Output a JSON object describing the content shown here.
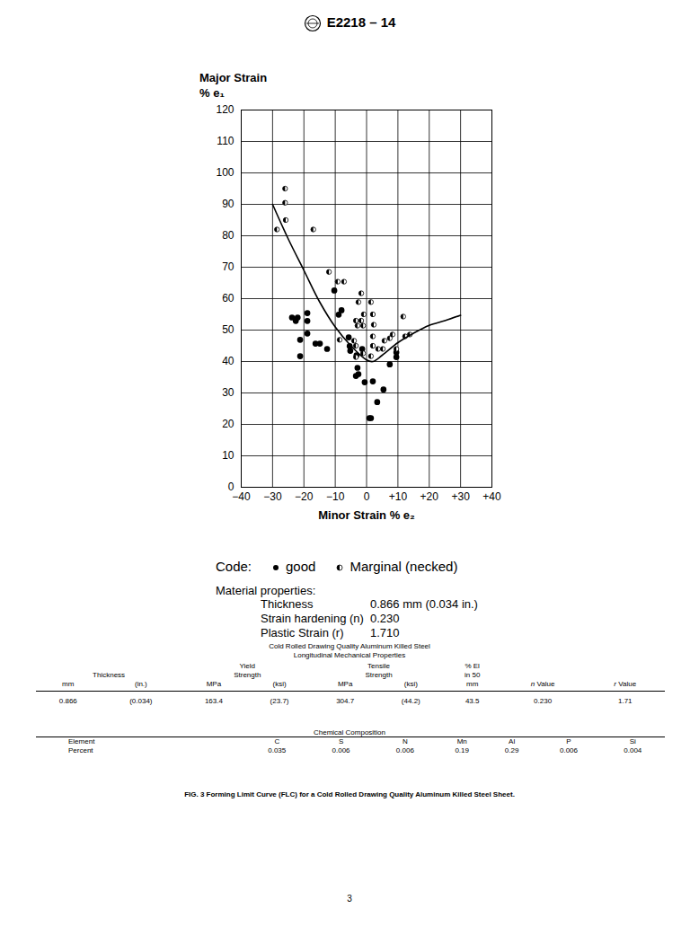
{
  "header": {
    "designation": "E2218 – 14"
  },
  "chart_data": {
    "type": "scatter",
    "xlabel": "Minor Strain % e₂",
    "ylabel": "Major Strain\n% e₁",
    "xlim": [
      -40,
      40
    ],
    "ylim": [
      0,
      120
    ],
    "xticks": [
      {
        "value": -40,
        "label": "−40"
      },
      {
        "value": -30,
        "label": "−30"
      },
      {
        "value": -20,
        "label": "−20"
      },
      {
        "value": -10,
        "label": "−10"
      },
      0,
      {
        "value": 10,
        "label": "+10"
      },
      {
        "value": 20,
        "label": "+20"
      },
      {
        "value": 30,
        "label": "+30"
      },
      {
        "value": 40,
        "label": "+40"
      }
    ],
    "yticks": [
      0,
      10,
      20,
      30,
      40,
      50,
      60,
      70,
      80,
      90,
      100,
      110,
      120
    ],
    "grid": true,
    "legend": "bottom",
    "series": [
      {
        "name": "good",
        "type": "scatter",
        "marker": "circle",
        "color": "#000000",
        "x": [
          -10.3,
          -8,
          -8.9,
          -18.9,
          -18.9,
          -23.8,
          -22,
          -22.6,
          -18.9,
          -21.2,
          -16.3,
          -14.9,
          -12.6,
          -21.2,
          -5.7,
          -5.4,
          -5.2,
          -1.4,
          -3.2,
          -2.9,
          -3.4,
          -2.6,
          -0.6,
          2,
          5.4,
          3.4,
          0.9,
          1.4,
          7.4,
          9.5,
          9.5
        ],
        "values": [
          62.6,
          56.3,
          54.9,
          55.4,
          52.9,
          54,
          54,
          52.9,
          48.9,
          46.9,
          45.7,
          45.7,
          44,
          41.7,
          47.7,
          44.9,
          43.4,
          44,
          42,
          38,
          35.4,
          36,
          33.4,
          33.7,
          31.1,
          27.1,
          22,
          22,
          39.1,
          41.4,
          42.9
        ]
      },
      {
        "name": "Marginal (necked)",
        "type": "scatter",
        "marker": "half-filled circle",
        "color": "#000000",
        "x": [
          -26,
          -26,
          -25.8,
          -28.6,
          -17,
          -12,
          -9.2,
          -7.2,
          -1.7,
          1.4,
          -2.6,
          2,
          -0.9,
          -3.4,
          -1.7,
          2.3,
          -2.9,
          -1.1,
          -8.6,
          -4,
          -3.4,
          2,
          2,
          3.7,
          5.2,
          5.7,
          7.4,
          8.3,
          11.7,
          12.3,
          13.8,
          9.5,
          1.4,
          -3.4,
          -1.1
        ],
        "values": [
          95,
          90.5,
          85,
          82,
          82,
          68.5,
          65.4,
          65.4,
          61.7,
          58.9,
          58.9,
          55,
          55,
          53,
          53,
          51.7,
          51.4,
          51.4,
          46.9,
          46.6,
          45,
          48,
          45,
          44,
          44,
          46.6,
          47.4,
          48.6,
          54.3,
          48,
          48.6,
          44,
          41.7,
          41.4,
          42.6
        ]
      },
      {
        "type": "line",
        "line_style": "solid",
        "color": "#000000",
        "x": [
          -30,
          -25,
          -20,
          -15,
          -10,
          -5,
          0,
          2,
          5,
          10,
          15,
          20,
          25,
          30
        ],
        "values": [
          90,
          79,
          69,
          59,
          51,
          45,
          40.5,
          40,
          42,
          46,
          49,
          51.5,
          53,
          54.7
        ]
      }
    ]
  },
  "legend_block": {
    "title": "Code:"
  },
  "material_properties": {
    "title": "Material properties:",
    "rows": [
      [
        "Thickness",
        "0.866 mm (0.034 in.)"
      ],
      [
        "Strain hardening (n)",
        "0.230"
      ],
      [
        "Plastic Strain (r)",
        "1.710"
      ]
    ]
  },
  "mechanical_table": {
    "title": "Cold Rolled Drawing Quality Aluminum Killed Steel",
    "subtitle": "Longitudinal Mechanical Properties",
    "groups": [
      {
        "label": "Thickness",
        "units": [
          "mm",
          "(in.)"
        ]
      },
      {
        "label": "Yield\nStrength",
        "units": [
          "MPa",
          "(ksi)"
        ]
      },
      {
        "label": "Tensile\nStrength",
        "units": [
          "MPa",
          "(ksi)"
        ]
      },
      {
        "label": "% El\nin 50\nmm",
        "units": []
      },
      {
        "label": "n Value",
        "italic": "n",
        "units": []
      },
      {
        "label": "r Value",
        "italic": "r",
        "units": []
      }
    ],
    "row": [
      "0.866",
      "(0.034)",
      "163.4",
      "(23.7)",
      "304.7",
      "(44.2)",
      "43.5",
      "0.230",
      "1.71"
    ]
  },
  "chemical_table": {
    "title": "Chemical Composition",
    "rows": [
      [
        "Element",
        "C",
        "S",
        "N",
        "Mn",
        "Al",
        "P",
        "Si"
      ],
      [
        "Percent",
        "0.035",
        "0.006",
        "0.006",
        "0.19",
        "0.29",
        "0.006",
        "0.004"
      ]
    ]
  },
  "caption": "FIG. 3 Forming Limit Curve (FLC) for a Cold Rolled Drawing Quality Aluminum Killed Steel Sheet.",
  "page_number": "3"
}
